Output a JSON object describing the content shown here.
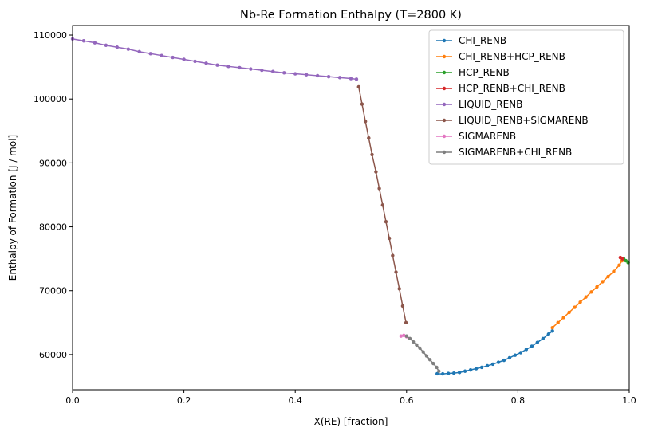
{
  "chart_data": {
    "type": "line",
    "title": "Nb-Re Formation Enthalpy (T=2800 K)",
    "xlabel": "X(RE) [fraction]",
    "ylabel": "Enthalpy of Formation [J / mol]",
    "xlim": [
      0,
      1
    ],
    "ylim": [
      54500,
      111500
    ],
    "xticks": [
      0,
      0.2,
      0.4,
      0.6,
      0.8,
      1.0
    ],
    "xtick_labels": [
      "0.0",
      "0.2",
      "0.4",
      "0.6",
      "0.8",
      "1.0"
    ],
    "yticks": [
      60000,
      70000,
      80000,
      90000,
      100000,
      110000
    ],
    "ytick_labels": [
      "60000",
      "70000",
      "80000",
      "90000",
      "100000",
      "110000"
    ],
    "grid": false,
    "legend_position": "top-right",
    "marker": "circle",
    "series": [
      {
        "name": "CHI_RENB",
        "color": "#1f77b4",
        "points": [
          [
            0.655,
            57000
          ],
          [
            0.665,
            56980
          ],
          [
            0.675,
            57050
          ],
          [
            0.685,
            57100
          ],
          [
            0.695,
            57200
          ],
          [
            0.705,
            57400
          ],
          [
            0.715,
            57600
          ],
          [
            0.725,
            57800
          ],
          [
            0.735,
            58000
          ],
          [
            0.745,
            58250
          ],
          [
            0.755,
            58500
          ],
          [
            0.765,
            58800
          ],
          [
            0.775,
            59100
          ],
          [
            0.785,
            59500
          ],
          [
            0.795,
            59900
          ],
          [
            0.805,
            60300
          ],
          [
            0.815,
            60800
          ],
          [
            0.825,
            61300
          ],
          [
            0.835,
            61900
          ],
          [
            0.845,
            62500
          ],
          [
            0.855,
            63200
          ],
          [
            0.862,
            63700
          ]
        ]
      },
      {
        "name": "CHI_RENB+HCP_RENB",
        "color": "#ff7f0e",
        "points": [
          [
            0.862,
            64200
          ],
          [
            0.872,
            65000
          ],
          [
            0.882,
            65800
          ],
          [
            0.892,
            66600
          ],
          [
            0.902,
            67400
          ],
          [
            0.912,
            68200
          ],
          [
            0.922,
            69000
          ],
          [
            0.932,
            69800
          ],
          [
            0.942,
            70600
          ],
          [
            0.952,
            71400
          ],
          [
            0.962,
            72200
          ],
          [
            0.972,
            73000
          ],
          [
            0.982,
            74000
          ],
          [
            0.987,
            74700
          ]
        ]
      },
      {
        "name": "HCP_RENB",
        "color": "#2ca02c",
        "points": [
          [
            0.99,
            75000
          ],
          [
            0.994,
            74700
          ],
          [
            0.998,
            74400
          ]
        ]
      },
      {
        "name": "HCP_RENB+CHI_RENB",
        "color": "#d62728",
        "points": [
          [
            0.984,
            75200
          ],
          [
            0.988,
            75000
          ]
        ]
      },
      {
        "name": "LIQUID_RENB",
        "color": "#9467bd",
        "points": [
          [
            0.0,
            109400
          ],
          [
            0.02,
            109100
          ],
          [
            0.04,
            108800
          ],
          [
            0.06,
            108400
          ],
          [
            0.08,
            108100
          ],
          [
            0.1,
            107800
          ],
          [
            0.12,
            107400
          ],
          [
            0.14,
            107100
          ],
          [
            0.16,
            106800
          ],
          [
            0.18,
            106500
          ],
          [
            0.2,
            106200
          ],
          [
            0.22,
            105900
          ],
          [
            0.24,
            105600
          ],
          [
            0.26,
            105300
          ],
          [
            0.28,
            105100
          ],
          [
            0.3,
            104900
          ],
          [
            0.32,
            104700
          ],
          [
            0.34,
            104500
          ],
          [
            0.36,
            104300
          ],
          [
            0.38,
            104100
          ],
          [
            0.4,
            103950
          ],
          [
            0.42,
            103800
          ],
          [
            0.44,
            103650
          ],
          [
            0.46,
            103500
          ],
          [
            0.48,
            103350
          ],
          [
            0.5,
            103200
          ],
          [
            0.51,
            103100
          ]
        ]
      },
      {
        "name": "LIQUID_RENB+SIGMARENB",
        "color": "#8c564b",
        "points": [
          [
            0.514,
            101900
          ],
          [
            0.52,
            99200
          ],
          [
            0.526,
            96500
          ],
          [
            0.532,
            93900
          ],
          [
            0.538,
            91300
          ],
          [
            0.545,
            88600
          ],
          [
            0.551,
            86000
          ],
          [
            0.557,
            83400
          ],
          [
            0.563,
            80800
          ],
          [
            0.569,
            78200
          ],
          [
            0.575,
            75500
          ],
          [
            0.581,
            72900
          ],
          [
            0.587,
            70300
          ],
          [
            0.593,
            67600
          ],
          [
            0.599,
            65000
          ]
        ]
      },
      {
        "name": "SIGMARENB",
        "color": "#e377c2",
        "points": [
          [
            0.59,
            62900
          ],
          [
            0.595,
            63000
          ],
          [
            0.6,
            62800
          ]
        ]
      },
      {
        "name": "SIGMARENB+CHI_RENB",
        "color": "#7f7f7f",
        "points": [
          [
            0.6,
            62900
          ],
          [
            0.606,
            62500
          ],
          [
            0.612,
            62000
          ],
          [
            0.618,
            61500
          ],
          [
            0.624,
            61000
          ],
          [
            0.63,
            60400
          ],
          [
            0.636,
            59800
          ],
          [
            0.642,
            59200
          ],
          [
            0.648,
            58600
          ],
          [
            0.654,
            58000
          ],
          [
            0.658,
            57400
          ]
        ]
      }
    ]
  }
}
